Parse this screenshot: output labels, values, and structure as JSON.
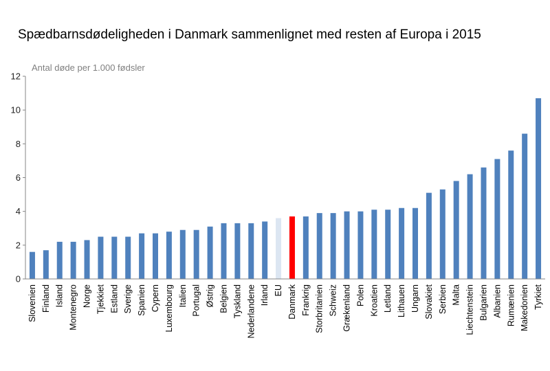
{
  "chart_data": {
    "type": "bar",
    "title": "Spædbarnsdødeligheden i Danmark sammenlignet med resten af Europa i 2015",
    "ylabel": "Antal døde per 1.000 fødsler",
    "xlabel": "",
    "ylim": [
      0,
      12
    ],
    "yticks": [
      0,
      2,
      4,
      6,
      8,
      10,
      12
    ],
    "grid": false,
    "colors": {
      "default": "#4f81bd",
      "highlight": "#ff0000",
      "eu": "#dce6f2"
    },
    "highlight_category": "Danmark",
    "eu_category": "EU",
    "categories": [
      "Slovenien",
      "Finland",
      "Island",
      "Montenegro",
      "Norge",
      "Tjekkiet",
      "Estland",
      "Sverige",
      "Spanien",
      "Cypern",
      "Luxembourg",
      "Italien",
      "Portugal",
      "Østrig",
      "Belgien",
      "Tyskland",
      "Nederlandene",
      "Irland",
      "EU",
      "Danmark",
      "Frankrig",
      "Storbritanien",
      "Schweiz",
      "Grækenland",
      "Polen",
      "Kroatien",
      "Letland",
      "Lithauen",
      "Ungarn",
      "Slovakiet",
      "Serbien",
      "Malta",
      "Liechtenstein",
      "Bulgarien",
      "Albanien",
      "Rumænien",
      "Makedonien",
      "Tyrkiet"
    ],
    "values": [
      1.6,
      1.7,
      2.2,
      2.2,
      2.3,
      2.5,
      2.5,
      2.5,
      2.7,
      2.7,
      2.8,
      2.9,
      2.9,
      3.1,
      3.3,
      3.3,
      3.3,
      3.4,
      3.6,
      3.7,
      3.7,
      3.9,
      3.9,
      4.0,
      4.0,
      4.1,
      4.1,
      4.2,
      4.2,
      5.1,
      5.3,
      5.8,
      6.2,
      6.6,
      7.1,
      7.6,
      8.6,
      10.7
    ]
  }
}
